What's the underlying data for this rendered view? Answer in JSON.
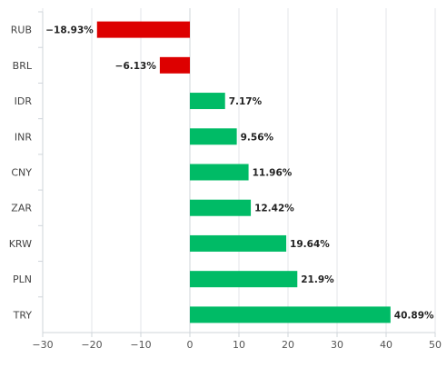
{
  "chart_data": {
    "type": "bar",
    "orientation": "horizontal",
    "categories": [
      "RUB",
      "BRL",
      "IDR",
      "INR",
      "CNY",
      "ZAR",
      "KRW",
      "PLN",
      "TRY"
    ],
    "values": [
      -18.93,
      -6.13,
      7.17,
      9.56,
      11.96,
      12.42,
      19.64,
      21.9,
      40.89
    ],
    "data_labels": [
      "−18.93%",
      "−6.13%",
      "7.17%",
      "9.56%",
      "11.96%",
      "12.42%",
      "19.64%",
      "21.9%",
      "40.89%"
    ],
    "xlim": [
      -30,
      50
    ],
    "x_ticks": [
      -30,
      -20,
      -10,
      0,
      10,
      20,
      30,
      40,
      50
    ],
    "x_tick_labels": [
      "−30",
      "−20",
      "−10",
      "0",
      "10",
      "20",
      "30",
      "40",
      "50"
    ],
    "grid": "vertical",
    "title": "",
    "xlabel": "",
    "ylabel": "",
    "colors": {
      "positive": "#00bb66",
      "negative": "#dd0000",
      "grid": "#e3e6ea",
      "axis": "#cfd4da"
    }
  }
}
